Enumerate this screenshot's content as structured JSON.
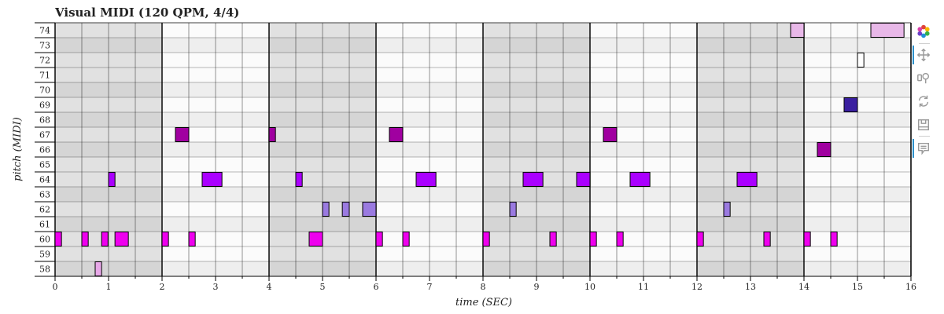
{
  "chart_data": {
    "type": "piano-roll",
    "title": "Visual MIDI (120 QPM, 4/4)",
    "xlabel": "time (SEC)",
    "ylabel": "pitch (MIDI)",
    "xlim": [
      0,
      16
    ],
    "ylim": [
      57.5,
      74.5
    ],
    "x_ticks": [
      0,
      1,
      2,
      3,
      4,
      5,
      6,
      7,
      8,
      9,
      10,
      11,
      12,
      13,
      14,
      15,
      16
    ],
    "pitches": [
      58,
      59,
      60,
      61,
      62,
      63,
      64,
      65,
      66,
      67,
      68,
      69,
      70,
      71,
      72,
      73,
      74
    ],
    "beat_seconds": 0.5,
    "bar_seconds": 2,
    "notes": [
      {
        "pitch": 60,
        "start": 0.0,
        "end": 0.12,
        "color": "#ee00ee"
      },
      {
        "pitch": 60,
        "start": 0.5,
        "end": 0.62,
        "color": "#ee00ee"
      },
      {
        "pitch": 58,
        "start": 0.75,
        "end": 0.87,
        "color": "#e8a8e8"
      },
      {
        "pitch": 60,
        "start": 0.87,
        "end": 0.99,
        "color": "#ee00ee"
      },
      {
        "pitch": 64,
        "start": 1.0,
        "end": 1.12,
        "color": "#aa00ff"
      },
      {
        "pitch": 60,
        "start": 1.12,
        "end": 1.37,
        "color": "#ee00ee"
      },
      {
        "pitch": 60,
        "start": 2.0,
        "end": 2.12,
        "color": "#ee00ee"
      },
      {
        "pitch": 67,
        "start": 2.25,
        "end": 2.5,
        "color": "#a000a0"
      },
      {
        "pitch": 60,
        "start": 2.5,
        "end": 2.62,
        "color": "#ee00ee"
      },
      {
        "pitch": 64,
        "start": 2.75,
        "end": 3.12,
        "color": "#aa00ff"
      },
      {
        "pitch": 67,
        "start": 4.0,
        "end": 4.12,
        "color": "#a000a0"
      },
      {
        "pitch": 64,
        "start": 4.5,
        "end": 4.62,
        "color": "#aa00ff"
      },
      {
        "pitch": 60,
        "start": 4.75,
        "end": 5.0,
        "color": "#ee00ee"
      },
      {
        "pitch": 62,
        "start": 5.0,
        "end": 5.12,
        "color": "#9a7ae0"
      },
      {
        "pitch": 62,
        "start": 5.37,
        "end": 5.5,
        "color": "#9a7ae0"
      },
      {
        "pitch": 62,
        "start": 5.75,
        "end": 6.0,
        "color": "#9a7ae0"
      },
      {
        "pitch": 60,
        "start": 6.0,
        "end": 6.12,
        "color": "#ee00ee"
      },
      {
        "pitch": 67,
        "start": 6.25,
        "end": 6.5,
        "color": "#a000a0"
      },
      {
        "pitch": 60,
        "start": 6.5,
        "end": 6.62,
        "color": "#ee00ee"
      },
      {
        "pitch": 64,
        "start": 6.75,
        "end": 7.12,
        "color": "#aa00ff"
      },
      {
        "pitch": 60,
        "start": 8.0,
        "end": 8.12,
        "color": "#ee00ee"
      },
      {
        "pitch": 62,
        "start": 8.5,
        "end": 8.62,
        "color": "#9a7ae0"
      },
      {
        "pitch": 64,
        "start": 8.75,
        "end": 9.12,
        "color": "#aa00ff"
      },
      {
        "pitch": 60,
        "start": 9.25,
        "end": 9.37,
        "color": "#ee00ee"
      },
      {
        "pitch": 64,
        "start": 9.75,
        "end": 10.0,
        "color": "#aa00ff"
      },
      {
        "pitch": 60,
        "start": 10.0,
        "end": 10.12,
        "color": "#ee00ee"
      },
      {
        "pitch": 67,
        "start": 10.25,
        "end": 10.5,
        "color": "#a000a0"
      },
      {
        "pitch": 60,
        "start": 10.5,
        "end": 10.62,
        "color": "#ee00ee"
      },
      {
        "pitch": 64,
        "start": 10.75,
        "end": 11.12,
        "color": "#aa00ff"
      },
      {
        "pitch": 60,
        "start": 12.0,
        "end": 12.12,
        "color": "#ee00ee"
      },
      {
        "pitch": 62,
        "start": 12.5,
        "end": 12.62,
        "color": "#9a7ae0"
      },
      {
        "pitch": 64,
        "start": 12.75,
        "end": 13.12,
        "color": "#aa00ff"
      },
      {
        "pitch": 60,
        "start": 13.25,
        "end": 13.37,
        "color": "#ee00ee"
      },
      {
        "pitch": 74,
        "start": 13.75,
        "end": 14.0,
        "color": "#e8b8e8"
      },
      {
        "pitch": 60,
        "start": 14.0,
        "end": 14.12,
        "color": "#ee00ee"
      },
      {
        "pitch": 66,
        "start": 14.25,
        "end": 14.5,
        "color": "#a000a0"
      },
      {
        "pitch": 60,
        "start": 14.5,
        "end": 14.62,
        "color": "#ee00ee"
      },
      {
        "pitch": 69,
        "start": 14.75,
        "end": 15.0,
        "color": "#3a1fa0"
      },
      {
        "pitch": 72,
        "start": 15.0,
        "end": 15.12,
        "color": "#ffffff"
      },
      {
        "pitch": 74,
        "start": 15.25,
        "end": 15.87,
        "color": "#e8b8e8"
      }
    ],
    "colors": {
      "row_white": "#fbfbfb",
      "row_gray": "#eeeeee",
      "shade_dark": "#d9d9d9",
      "note_border": "#000000"
    },
    "grid": true
  },
  "toolbar": {
    "icons": [
      "bokeh-logo-icon",
      "pan-icon",
      "box-zoom-icon",
      "reset-icon",
      "save-icon",
      "hover-icon"
    ]
  }
}
